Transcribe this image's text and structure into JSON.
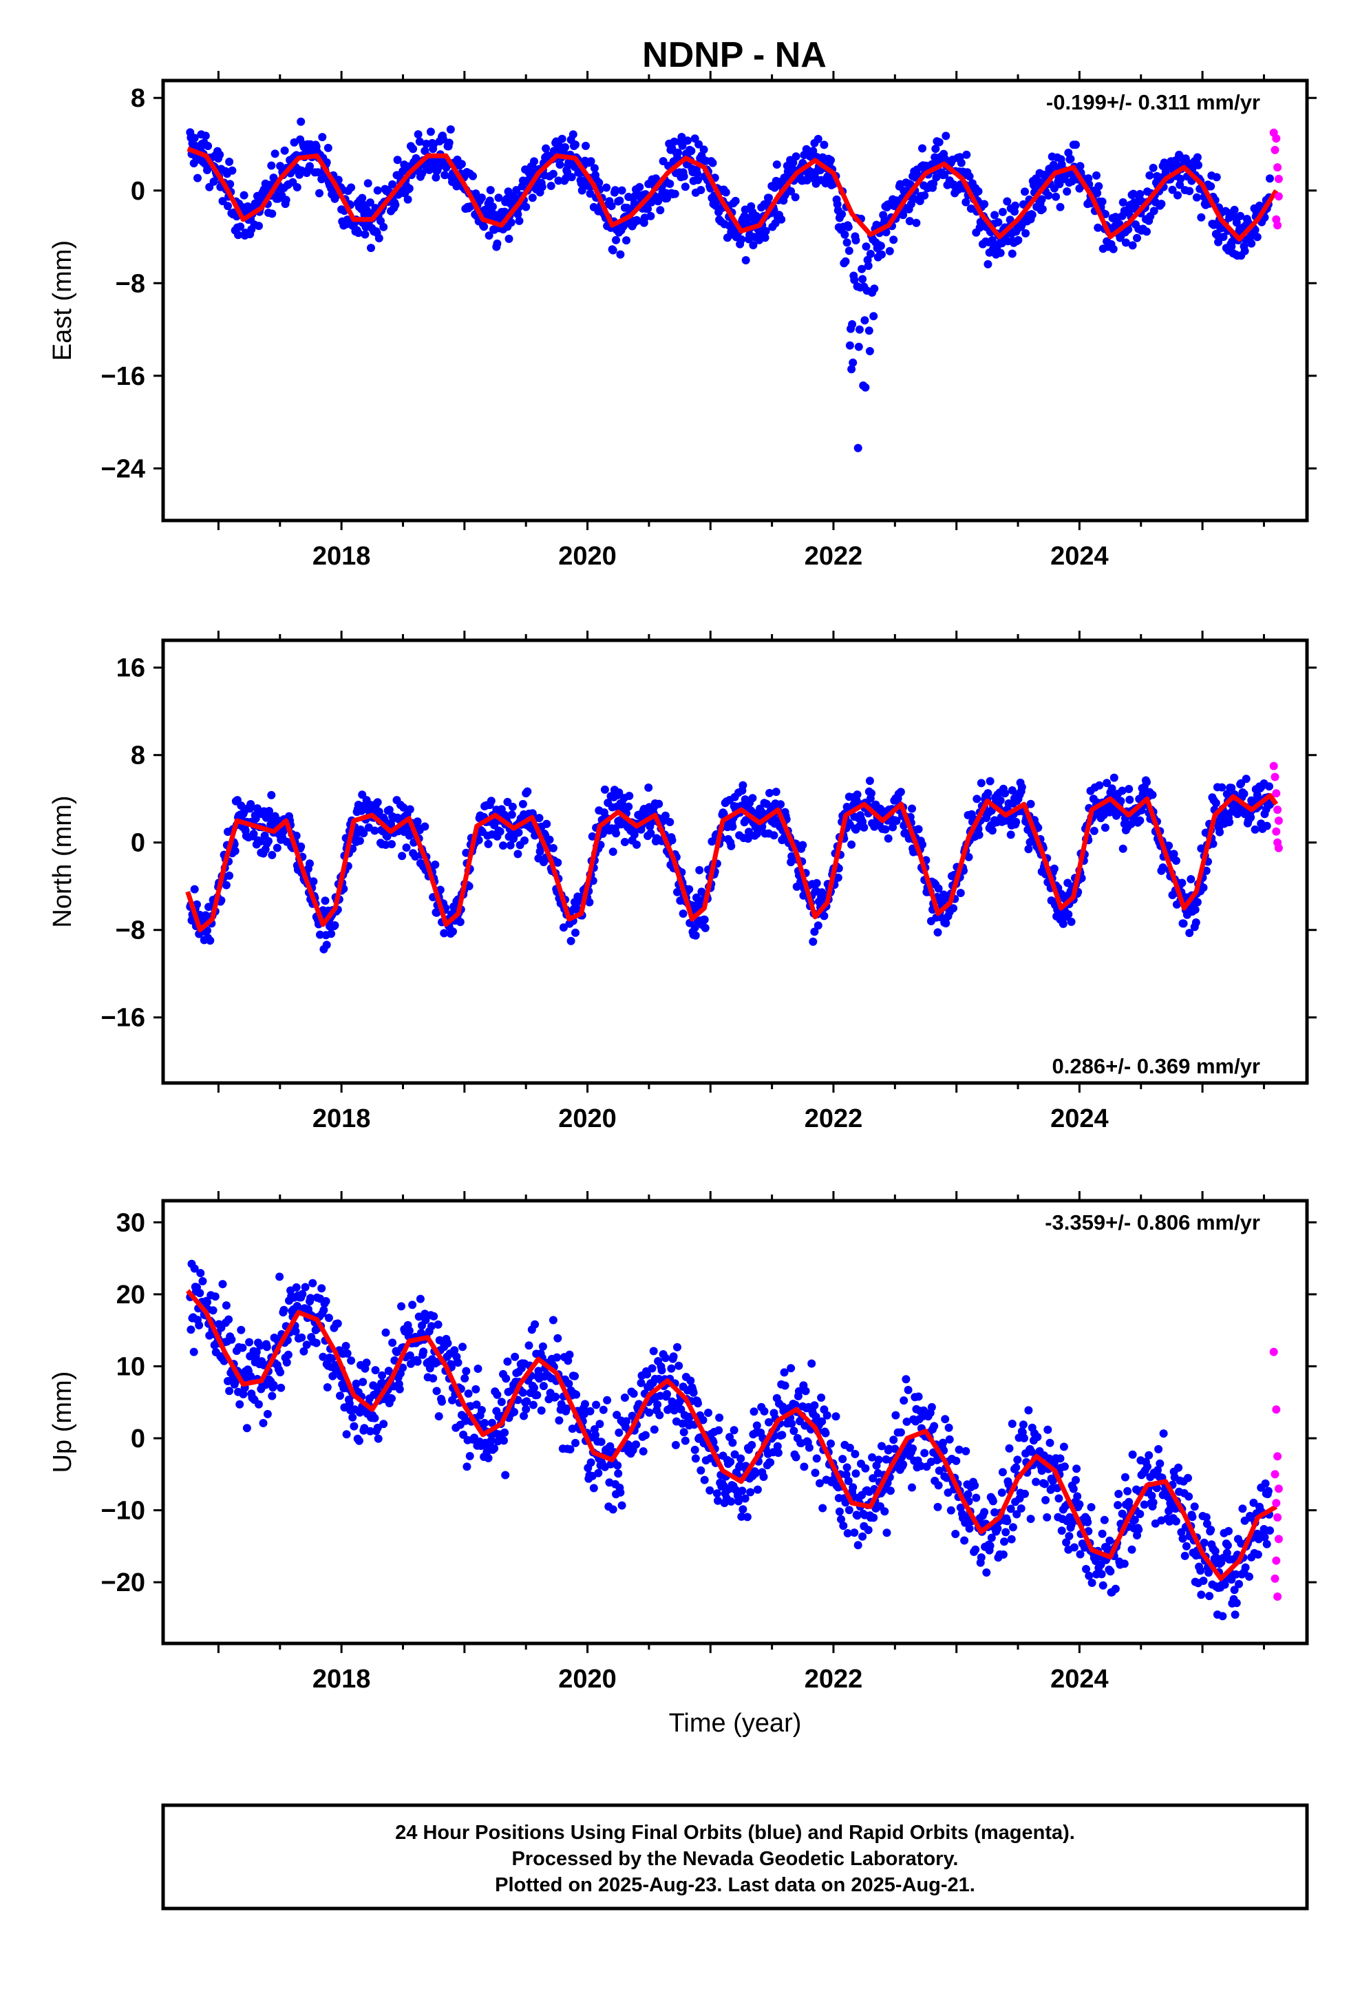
{
  "title": "NDNP - NA",
  "chart_data": [
    {
      "type": "scatter",
      "ylabel": "East (mm)",
      "xlabel": "",
      "xlim": [
        2016.55,
        2025.85
      ],
      "ylim": [
        -28.5,
        9.5
      ],
      "yticks": [
        8,
        0,
        -8,
        -16,
        -24
      ],
      "ytick_labels": [
        "8",
        "0",
        "−8",
        "−16",
        "−24"
      ],
      "xticks": [
        2018,
        2020,
        2022,
        2024
      ],
      "xtick_labels": [
        "2018",
        "2020",
        "2022",
        "2024"
      ],
      "rate_label": "-0.199+/- 0.311 mm/yr",
      "rate_position": "top-right",
      "model_fit": {
        "color": "#ff0000",
        "x": [
          2016.75,
          2016.9,
          2017.05,
          2017.2,
          2017.35,
          2017.5,
          2017.65,
          2017.8,
          2017.95,
          2018.1,
          2018.25,
          2018.4,
          2018.55,
          2018.7,
          2018.85,
          2019.0,
          2019.15,
          2019.3,
          2019.45,
          2019.6,
          2019.75,
          2019.9,
          2020.05,
          2020.2,
          2020.35,
          2020.5,
          2020.65,
          2020.8,
          2020.95,
          2021.1,
          2021.25,
          2021.4,
          2021.55,
          2021.7,
          2021.85,
          2022.0,
          2022.15,
          2022.3,
          2022.45,
          2022.6,
          2022.75,
          2022.9,
          2023.05,
          2023.2,
          2023.35,
          2023.5,
          2023.65,
          2023.8,
          2023.95,
          2024.1,
          2024.25,
          2024.4,
          2024.55,
          2024.7,
          2024.85,
          2025.0,
          2025.15,
          2025.3,
          2025.45,
          2025.6
        ],
        "y": [
          3.6,
          3.0,
          0.5,
          -2.5,
          -1.5,
          1.0,
          2.8,
          3.0,
          0.5,
          -2.5,
          -2.5,
          -0.5,
          1.5,
          3.0,
          3.0,
          0.5,
          -2.5,
          -3.0,
          -1.0,
          1.5,
          3.0,
          2.8,
          0.5,
          -3.0,
          -2.2,
          -0.5,
          1.5,
          2.8,
          2.0,
          -1.0,
          -3.5,
          -3.0,
          -0.5,
          1.5,
          2.6,
          1.5,
          -2.0,
          -3.8,
          -3.0,
          -0.5,
          1.5,
          2.3,
          1.0,
          -2.0,
          -4.0,
          -2.5,
          -0.5,
          1.5,
          2.0,
          -0.5,
          -4.0,
          -2.8,
          -1.0,
          1.0,
          2.0,
          0.5,
          -2.5,
          -4.2,
          -2.5,
          0.0
        ]
      },
      "rapid_points": {
        "color": "#ff00ff",
        "x": [
          2025.58,
          2025.59,
          2025.6,
          2025.61,
          2025.62,
          2025.6,
          2025.61,
          2025.62
        ],
        "y": [
          5.0,
          3.5,
          4.5,
          2.0,
          1.0,
          -2.5,
          -3.0,
          -0.5
        ]
      },
      "final_points_color": "#0000ff"
    },
    {
      "type": "scatter",
      "ylabel": "North (mm)",
      "xlabel": "",
      "xlim": [
        2016.55,
        2025.85
      ],
      "ylim": [
        -22,
        18.5
      ],
      "yticks": [
        16,
        8,
        0,
        -8,
        -16
      ],
      "ytick_labels": [
        "16",
        "8",
        "0",
        "−8",
        "−16"
      ],
      "xticks": [
        2018,
        2020,
        2022,
        2024
      ],
      "xtick_labels": [
        "2018",
        "2020",
        "2022",
        "2024"
      ],
      "rate_label": "0.286+/- 0.369 mm/yr",
      "rate_position": "bottom-right",
      "model_fit": {
        "color": "#ff0000",
        "x": [
          2016.75,
          2016.85,
          2016.95,
          2017.05,
          2017.15,
          2017.3,
          2017.45,
          2017.55,
          2017.7,
          2017.85,
          2017.95,
          2018.1,
          2018.25,
          2018.4,
          2018.55,
          2018.7,
          2018.85,
          2018.95,
          2019.1,
          2019.25,
          2019.4,
          2019.55,
          2019.7,
          2019.85,
          2019.95,
          2020.1,
          2020.25,
          2020.4,
          2020.55,
          2020.7,
          2020.85,
          2020.95,
          2021.1,
          2021.25,
          2021.4,
          2021.55,
          2021.7,
          2021.85,
          2021.95,
          2022.1,
          2022.25,
          2022.4,
          2022.55,
          2022.7,
          2022.85,
          2022.95,
          2023.1,
          2023.25,
          2023.4,
          2023.55,
          2023.7,
          2023.85,
          2023.95,
          2024.1,
          2024.25,
          2024.4,
          2024.55,
          2024.7,
          2024.85,
          2024.95,
          2025.1,
          2025.25,
          2025.4,
          2025.55,
          2025.6
        ],
        "y": [
          -4.5,
          -8.0,
          -7.0,
          -2.0,
          2.0,
          1.5,
          1.0,
          2.0,
          -3.0,
          -7.5,
          -6.0,
          2.0,
          2.5,
          1.0,
          2.2,
          -2.0,
          -7.5,
          -6.5,
          1.5,
          2.5,
          1.3,
          2.3,
          -1.5,
          -7.0,
          -6.5,
          1.5,
          2.8,
          1.5,
          2.5,
          -1.5,
          -7.0,
          -6.0,
          2.0,
          3.0,
          1.8,
          3.0,
          -1.0,
          -6.8,
          -5.5,
          2.5,
          3.5,
          2.0,
          3.5,
          -1.0,
          -6.5,
          -5.5,
          0.5,
          3.8,
          2.5,
          3.5,
          -1.0,
          -6.0,
          -5.0,
          3.0,
          4.0,
          2.5,
          4.0,
          -1.0,
          -6.0,
          -4.5,
          2.5,
          4.2,
          3.0,
          4.3,
          3.5
        ]
      },
      "rapid_points": {
        "color": "#ff00ff",
        "x": [
          2025.58,
          2025.59,
          2025.6,
          2025.61,
          2025.62,
          2025.6,
          2025.61,
          2025.62
        ],
        "y": [
          7.0,
          6.0,
          4.5,
          3.0,
          2.0,
          1.0,
          0.0,
          -0.5
        ]
      },
      "final_points_color": "#0000ff"
    },
    {
      "type": "scatter",
      "ylabel": "Up (mm)",
      "xlabel": "Time (year)",
      "xlim": [
        2016.55,
        2025.85
      ],
      "ylim": [
        -28.5,
        33
      ],
      "yticks": [
        30,
        20,
        10,
        0,
        -10,
        -20
      ],
      "ytick_labels": [
        "30",
        "20",
        "10",
        "0",
        "−10",
        "−20"
      ],
      "xticks": [
        2018,
        2020,
        2022,
        2024
      ],
      "xtick_labels": [
        "2018",
        "2020",
        "2022",
        "2024"
      ],
      "rate_label": "-3.359+/- 0.806 mm/yr",
      "rate_position": "top-right",
      "model_fit": {
        "color": "#ff0000",
        "x": [
          2016.75,
          2016.9,
          2017.05,
          2017.2,
          2017.35,
          2017.5,
          2017.65,
          2017.8,
          2017.95,
          2018.1,
          2018.25,
          2018.4,
          2018.55,
          2018.7,
          2018.85,
          2019.0,
          2019.15,
          2019.3,
          2019.45,
          2019.6,
          2019.75,
          2019.9,
          2020.05,
          2020.2,
          2020.35,
          2020.5,
          2020.65,
          2020.8,
          2020.95,
          2021.1,
          2021.25,
          2021.4,
          2021.55,
          2021.7,
          2021.85,
          2022.0,
          2022.15,
          2022.3,
          2022.45,
          2022.6,
          2022.75,
          2022.9,
          2023.05,
          2023.2,
          2023.35,
          2023.5,
          2023.65,
          2023.8,
          2023.95,
          2024.1,
          2024.25,
          2024.4,
          2024.55,
          2024.7,
          2024.85,
          2025.0,
          2025.15,
          2025.3,
          2025.45,
          2025.6
        ],
        "y": [
          20.5,
          17.5,
          12.0,
          7.5,
          8.0,
          13.0,
          17.5,
          16.5,
          12.0,
          6.0,
          4.0,
          8.0,
          13.5,
          14.0,
          10.0,
          4.5,
          0.5,
          2.0,
          7.5,
          11.0,
          9.0,
          3.5,
          -2.0,
          -3.0,
          1.0,
          6.0,
          8.0,
          5.5,
          0.5,
          -4.5,
          -6.0,
          -2.0,
          2.5,
          4.0,
          1.5,
          -4.0,
          -9.0,
          -9.5,
          -4.5,
          0.0,
          1.0,
          -3.0,
          -8.5,
          -13.0,
          -11.0,
          -5.5,
          -2.5,
          -4.5,
          -10.0,
          -15.5,
          -16.5,
          -11.0,
          -6.5,
          -6.0,
          -10.5,
          -16.0,
          -19.5,
          -17.0,
          -11.0,
          -9.5
        ]
      },
      "rapid_points": {
        "color": "#ff00ff",
        "x": [
          2025.58,
          2025.6,
          2025.61,
          2025.59,
          2025.62,
          2025.6,
          2025.61,
          2025.62,
          2025.6,
          2025.59,
          2025.61
        ],
        "y": [
          12.0,
          4.0,
          -2.5,
          -5.0,
          -7.0,
          -9.0,
          -11.0,
          -14.0,
          -17.0,
          -19.5,
          -22.0
        ]
      },
      "final_points_color": "#0000ff"
    }
  ],
  "footer": {
    "line1": "24 Hour Positions Using Final Orbits (blue) and Rapid Orbits (magenta).",
    "line2": "Processed by the Nevada Geodetic Laboratory.",
    "line3": "Plotted on 2025-Aug-23. Last data on 2025-Aug-21."
  }
}
